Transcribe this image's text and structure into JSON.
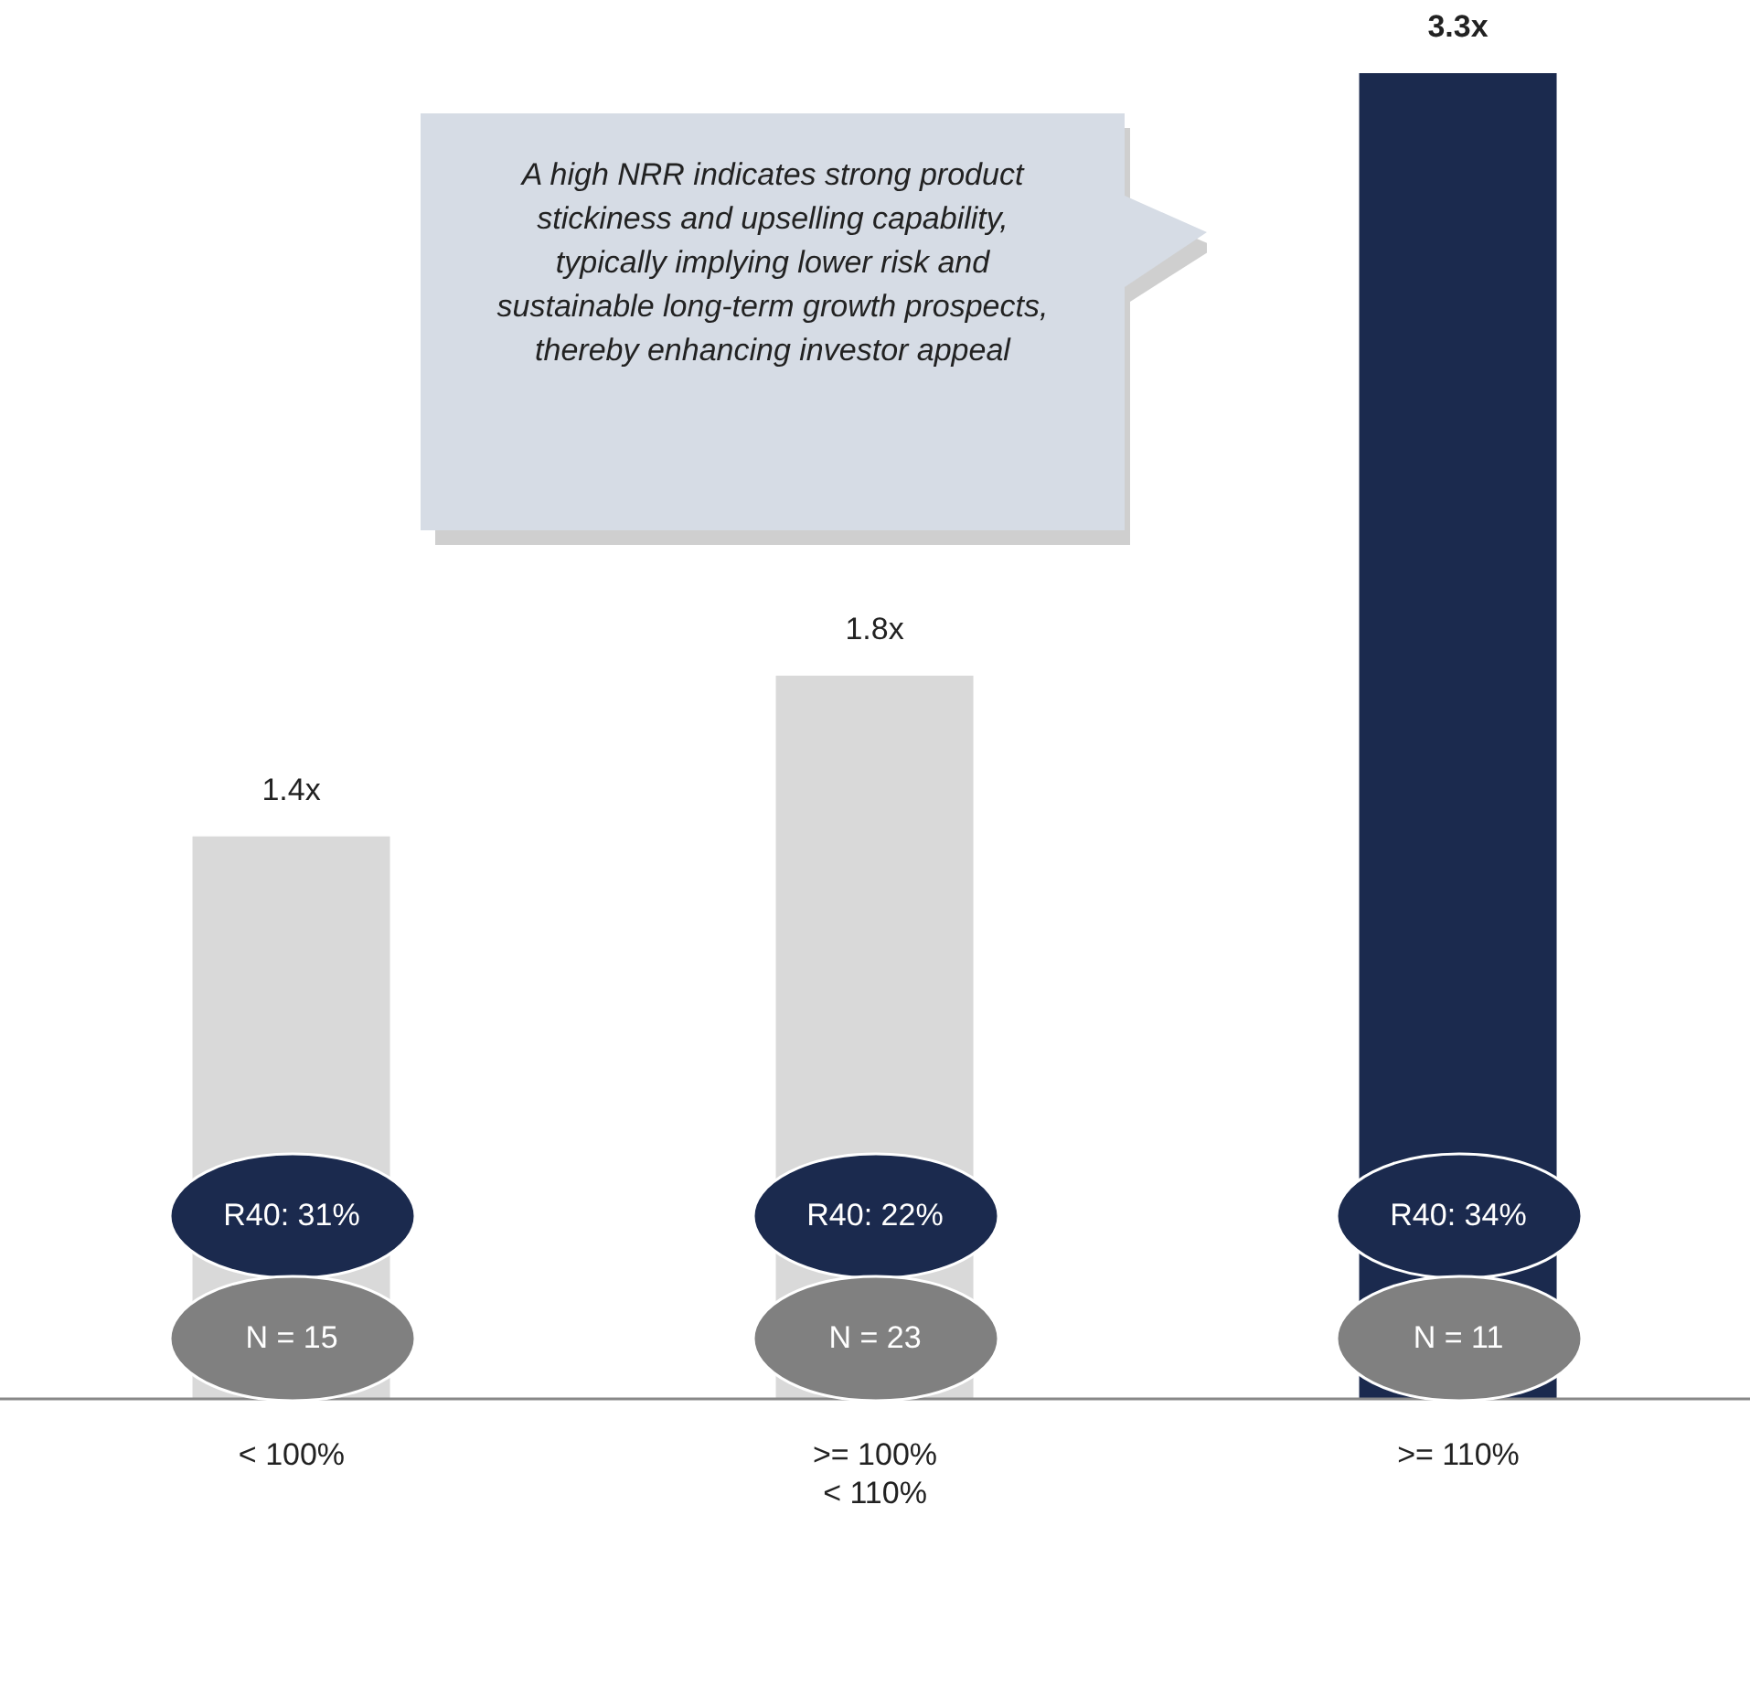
{
  "chart_data": {
    "type": "bar",
    "categories": [
      "< 100%",
      ">= 100%\n< 110%",
      ">= 110%"
    ],
    "values": [
      1.4,
      1.8,
      3.3
    ],
    "colors": [
      "#d9d9d9",
      "#d9d9d9",
      "#1b2a4e"
    ],
    "value_labels": [
      "1.4x",
      "1.8x",
      "3.3x"
    ],
    "annotations": [
      "A high NRR indicates strong product stickiness and upselling capability, typically implying lower risk and sustainable long-term growth prospects, thereby enhancing investor appeal",
      "R40: 31%",
      "N = 15",
      "R40: 22%",
      "N = 23",
      "R40: 34%",
      "N = 11"
    ],
    "grid": false,
    "legend": false
  }
}
